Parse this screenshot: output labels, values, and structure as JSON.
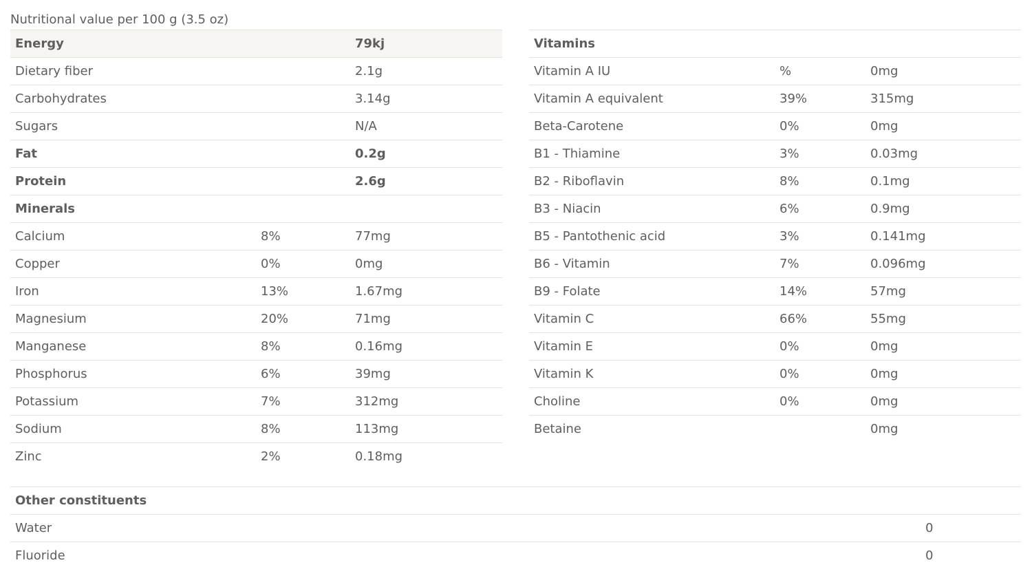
{
  "caption": "Nutritional value per 100 g (3.5 oz)",
  "left_table": [
    {
      "name": "Energy",
      "pct": "",
      "amount": "79kj",
      "bold": true,
      "highlight": true
    },
    {
      "name": "Dietary fiber",
      "pct": "",
      "amount": "2.1g"
    },
    {
      "name": "Carbohydrates",
      "pct": "",
      "amount": "3.14g"
    },
    {
      "name": "Sugars",
      "pct": "",
      "amount": "N/A"
    },
    {
      "name": "Fat",
      "pct": "",
      "amount": "0.2g",
      "bold": true
    },
    {
      "name": "Protein",
      "pct": "",
      "amount": "2.6g",
      "bold": true
    },
    {
      "name": "Minerals",
      "pct": "",
      "amount": "",
      "bold": true
    },
    {
      "name": "Calcium",
      "pct": "8%",
      "amount": "77mg"
    },
    {
      "name": "Copper",
      "pct": "0%",
      "amount": " 0mg"
    },
    {
      "name": "Iron",
      "pct": "13%",
      "amount": "1.67mg"
    },
    {
      "name": "Magnesium",
      "pct": "20%",
      "amount": "71mg"
    },
    {
      "name": "Manganese",
      "pct": "8%",
      "amount": "0.16mg"
    },
    {
      "name": "Phosphorus",
      "pct": "6%",
      "amount": "39mg"
    },
    {
      "name": "Potassium",
      "pct": "7%",
      "amount": "312mg"
    },
    {
      "name": "Sodium",
      "pct": "8%",
      "amount": " 113mg"
    },
    {
      "name": "Zinc",
      "pct": "2%",
      "amount": " 0.18mg"
    }
  ],
  "right_table": [
    {
      "name": "Vitamins",
      "pct": "",
      "amount": "",
      "bold": true
    },
    {
      "name": "Vitamin A IU",
      "pct": "%",
      "amount": "0mg"
    },
    {
      "name": "Vitamin A equivalent",
      "pct": "39%",
      "amount": "315mg"
    },
    {
      "name": "Beta-Carotene",
      "pct": "0%",
      "amount": "0mg"
    },
    {
      "name": "B1 - Thiamine",
      "pct": "3%",
      "amount": "0.03mg"
    },
    {
      "name": "B2 - Riboflavin",
      "pct": "8%",
      "amount": "0.1mg"
    },
    {
      "name": "B3 - Niacin",
      "pct": "6%",
      "amount": "0.9mg"
    },
    {
      "name": "B5 - Pantothenic acid",
      "pct": "3%",
      "amount": "0.141mg"
    },
    {
      "name": "B6 - Vitamin",
      "pct": "7%",
      "amount": "0.096mg"
    },
    {
      "name": "B9 - Folate",
      "pct": "14%",
      "amount": "57mg"
    },
    {
      "name": "Vitamin C",
      "pct": "66%",
      "amount": "55mg"
    },
    {
      "name": "Vitamin E",
      "pct": "0%",
      "amount": "0mg"
    },
    {
      "name": "Vitamin K",
      "pct": "0%",
      "amount": "0mg"
    },
    {
      "name": "Choline",
      "pct": "0%",
      "amount": "0mg"
    },
    {
      "name": "Betaine",
      "pct": "",
      "amount": "0mg"
    }
  ],
  "other_table": [
    {
      "name": "Other constituents",
      "amount": "",
      "bold": true
    },
    {
      "name": "Water",
      "amount": "0"
    },
    {
      "name": "Fluoride",
      "amount": "0"
    }
  ]
}
